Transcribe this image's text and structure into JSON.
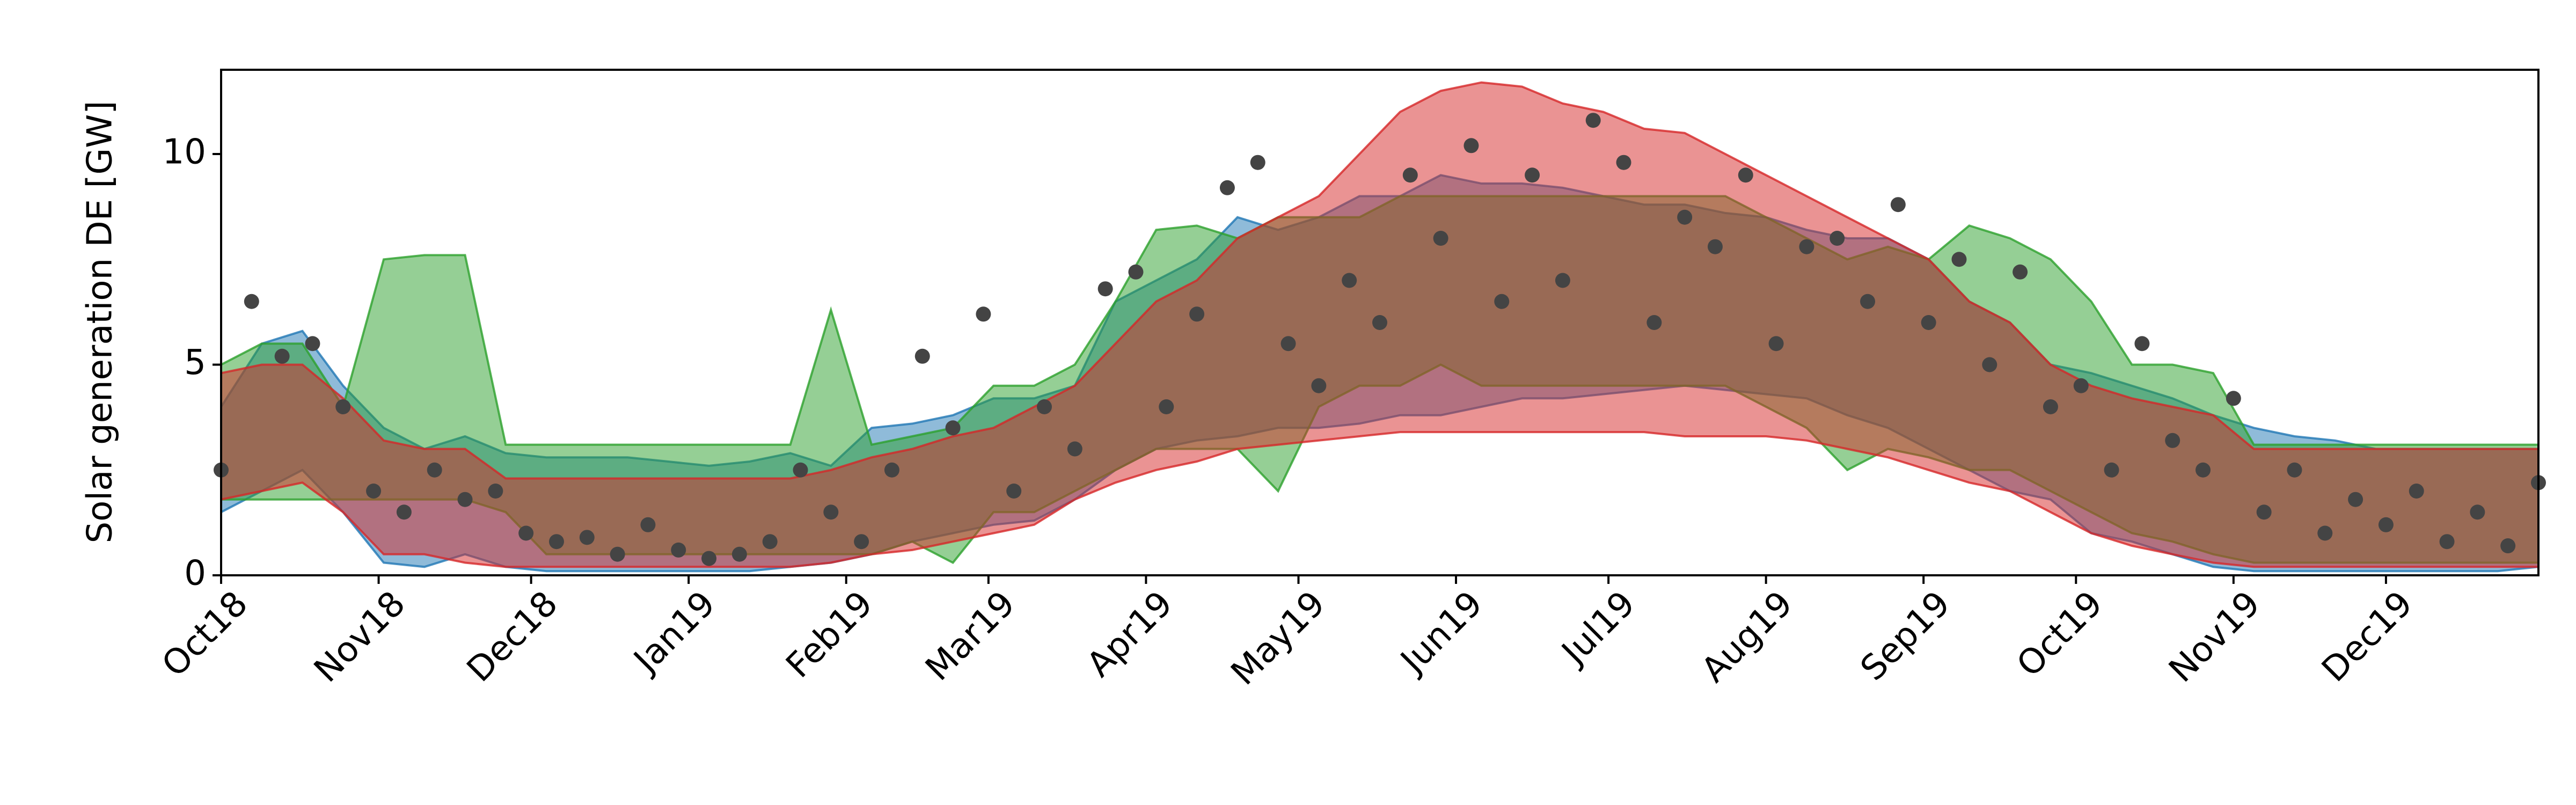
{
  "chart_data": {
    "type": "band-scatter",
    "ylabel": "Solar generation DE [GW]",
    "xlim": [
      0,
      456
    ],
    "ylim": [
      0,
      12
    ],
    "yticks": [
      0,
      5,
      10
    ],
    "xticks": [
      {
        "value": 0,
        "label": "Oct18"
      },
      {
        "value": 31,
        "label": "Nov18"
      },
      {
        "value": 61,
        "label": "Dec18"
      },
      {
        "value": 92,
        "label": "Jan19"
      },
      {
        "value": 123,
        "label": "Feb19"
      },
      {
        "value": 151,
        "label": "Mar19"
      },
      {
        "value": 182,
        "label": "Apr19"
      },
      {
        "value": 212,
        "label": "May19"
      },
      {
        "value": 243,
        "label": "Jun19"
      },
      {
        "value": 273,
        "label": "Jul19"
      },
      {
        "value": 304,
        "label": "Aug19"
      },
      {
        "value": 335,
        "label": "Sep19"
      },
      {
        "value": 365,
        "label": "Oct19"
      },
      {
        "value": 396,
        "label": "Nov19"
      },
      {
        "value": 426,
        "label": "Dec19"
      }
    ],
    "series": [
      {
        "color": "#1f77b4",
        "x": [
          0,
          8,
          16,
          24,
          32,
          40,
          48,
          56,
          64,
          72,
          80,
          88,
          96,
          104,
          112,
          120,
          128,
          136,
          144,
          152,
          160,
          168,
          176,
          184,
          192,
          200,
          208,
          216,
          224,
          232,
          240,
          248,
          256,
          264,
          272,
          280,
          288,
          296,
          304,
          312,
          320,
          328,
          336,
          344,
          352,
          360,
          368,
          376,
          384,
          392,
          400,
          408,
          416,
          424,
          432,
          440,
          448,
          456
        ],
        "lower": [
          1.5,
          2.0,
          2.5,
          1.5,
          0.3,
          0.2,
          0.5,
          0.2,
          0.1,
          0.1,
          0.1,
          0.1,
          0.1,
          0.1,
          0.2,
          0.3,
          0.5,
          0.8,
          1.0,
          1.2,
          1.3,
          1.8,
          2.5,
          3.0,
          3.2,
          3.3,
          3.5,
          3.5,
          3.6,
          3.8,
          3.8,
          4.0,
          4.2,
          4.2,
          4.3,
          4.4,
          4.5,
          4.4,
          4.3,
          4.2,
          3.8,
          3.5,
          3.0,
          2.5,
          2.0,
          1.8,
          1.0,
          0.8,
          0.5,
          0.2,
          0.1,
          0.1,
          0.1,
          0.1,
          0.1,
          0.1,
          0.1,
          0.2
        ],
        "upper": [
          4.0,
          5.5,
          5.8,
          4.5,
          3.5,
          3.0,
          3.3,
          2.9,
          2.8,
          2.8,
          2.8,
          2.7,
          2.6,
          2.7,
          2.9,
          2.6,
          3.5,
          3.6,
          3.8,
          4.2,
          4.2,
          4.5,
          6.5,
          7.0,
          7.5,
          8.5,
          8.2,
          8.5,
          9.0,
          9.0,
          9.5,
          9.3,
          9.3,
          9.2,
          9.0,
          8.8,
          8.8,
          8.6,
          8.5,
          8.2,
          8.0,
          8.0,
          7.5,
          6.5,
          6.0,
          5.0,
          4.8,
          4.5,
          4.2,
          3.8,
          3.5,
          3.3,
          3.2,
          3.0,
          3.0,
          3.0,
          3.0,
          3.0
        ]
      },
      {
        "color": "#2ca02c",
        "x": [
          0,
          8,
          16,
          24,
          32,
          40,
          48,
          56,
          64,
          72,
          80,
          88,
          96,
          104,
          112,
          120,
          128,
          136,
          144,
          152,
          160,
          168,
          176,
          184,
          192,
          200,
          208,
          216,
          224,
          232,
          240,
          248,
          256,
          264,
          272,
          280,
          288,
          296,
          304,
          312,
          320,
          328,
          336,
          344,
          352,
          360,
          368,
          376,
          384,
          392,
          400,
          408,
          416,
          424,
          432,
          440,
          448,
          456
        ],
        "lower": [
          1.8,
          1.8,
          1.8,
          1.8,
          1.8,
          1.8,
          1.8,
          1.5,
          0.5,
          0.5,
          0.5,
          0.5,
          0.5,
          0.5,
          0.5,
          0.5,
          0.5,
          0.8,
          0.3,
          1.5,
          1.5,
          2.0,
          2.5,
          3.0,
          3.0,
          3.0,
          2.0,
          4.0,
          4.5,
          4.5,
          5.0,
          4.5,
          4.5,
          4.5,
          4.5,
          4.5,
          4.5,
          4.5,
          4.0,
          3.5,
          2.5,
          3.0,
          2.8,
          2.5,
          2.5,
          2.0,
          1.5,
          1.0,
          0.8,
          0.5,
          0.3,
          0.3,
          0.3,
          0.3,
          0.3,
          0.3,
          0.3,
          0.3
        ],
        "upper": [
          5.0,
          5.5,
          5.5,
          4.0,
          7.5,
          7.6,
          7.6,
          3.1,
          3.1,
          3.1,
          3.1,
          3.1,
          3.1,
          3.1,
          3.1,
          6.3,
          3.1,
          3.3,
          3.5,
          4.5,
          4.5,
          5.0,
          6.5,
          8.2,
          8.3,
          8.0,
          8.5,
          8.5,
          8.5,
          9.0,
          9.0,
          9.0,
          9.0,
          9.0,
          9.0,
          9.0,
          9.0,
          9.0,
          8.5,
          8.0,
          7.5,
          7.8,
          7.5,
          8.3,
          8.0,
          7.5,
          6.5,
          5.0,
          5.0,
          4.8,
          3.1,
          3.1,
          3.1,
          3.1,
          3.1,
          3.1,
          3.1,
          3.1
        ]
      },
      {
        "color": "#d62728",
        "x": [
          0,
          8,
          16,
          24,
          32,
          40,
          48,
          56,
          64,
          72,
          80,
          88,
          96,
          104,
          112,
          120,
          128,
          136,
          144,
          152,
          160,
          168,
          176,
          184,
          192,
          200,
          208,
          216,
          224,
          232,
          240,
          248,
          256,
          264,
          272,
          280,
          288,
          296,
          304,
          312,
          320,
          328,
          336,
          344,
          352,
          360,
          368,
          376,
          384,
          392,
          400,
          408,
          416,
          424,
          432,
          440,
          448,
          456
        ],
        "lower": [
          1.8,
          2.0,
          2.2,
          1.5,
          0.5,
          0.5,
          0.3,
          0.2,
          0.2,
          0.2,
          0.2,
          0.2,
          0.2,
          0.2,
          0.2,
          0.3,
          0.5,
          0.6,
          0.8,
          1.0,
          1.2,
          1.8,
          2.2,
          2.5,
          2.7,
          3.0,
          3.1,
          3.2,
          3.3,
          3.4,
          3.4,
          3.4,
          3.4,
          3.4,
          3.4,
          3.4,
          3.3,
          3.3,
          3.3,
          3.2,
          3.0,
          2.8,
          2.5,
          2.2,
          2.0,
          1.5,
          1.0,
          0.7,
          0.5,
          0.3,
          0.2,
          0.2,
          0.2,
          0.2,
          0.2,
          0.2,
          0.2,
          0.2
        ],
        "upper": [
          4.8,
          5.0,
          5.0,
          4.2,
          3.2,
          3.0,
          3.0,
          2.3,
          2.3,
          2.3,
          2.3,
          2.3,
          2.3,
          2.3,
          2.3,
          2.5,
          2.8,
          3.0,
          3.3,
          3.5,
          4.0,
          4.5,
          5.5,
          6.5,
          7.0,
          8.0,
          8.5,
          9.0,
          10.0,
          11.0,
          11.5,
          11.7,
          11.6,
          11.2,
          11.0,
          10.6,
          10.5,
          10.0,
          9.5,
          9.0,
          8.5,
          8.0,
          7.5,
          6.5,
          6.0,
          5.0,
          4.5,
          4.2,
          4.0,
          3.8,
          3.0,
          3.0,
          3.0,
          3.0,
          3.0,
          3.0,
          3.0,
          3.0
        ]
      }
    ],
    "points": {
      "color": "#444444",
      "x": [
        0,
        6,
        12,
        18,
        24,
        30,
        36,
        42,
        48,
        54,
        60,
        66,
        72,
        78,
        84,
        90,
        96,
        102,
        108,
        114,
        120,
        126,
        132,
        138,
        144,
        150,
        156,
        162,
        168,
        174,
        180,
        186,
        192,
        198,
        204,
        210,
        216,
        222,
        228,
        234,
        240,
        246,
        252,
        258,
        264,
        270,
        276,
        282,
        288,
        294,
        300,
        306,
        312,
        318,
        324,
        330,
        336,
        342,
        348,
        354,
        360,
        366,
        372,
        378,
        384,
        390,
        396,
        402,
        408,
        414,
        420,
        426,
        432,
        438,
        444,
        450,
        456
      ],
      "values": [
        2.5,
        6.5,
        5.2,
        5.5,
        4.0,
        2.0,
        1.5,
        2.5,
        1.8,
        2.0,
        1.0,
        0.8,
        0.9,
        0.5,
        1.2,
        0.6,
        0.4,
        0.5,
        0.8,
        2.5,
        1.5,
        0.8,
        2.5,
        5.2,
        3.5,
        6.2,
        2.0,
        4.0,
        3.0,
        6.8,
        7.2,
        4.0,
        6.2,
        9.2,
        9.8,
        5.5,
        4.5,
        7.0,
        6.0,
        9.5,
        8.0,
        10.2,
        6.5,
        9.5,
        7.0,
        10.8,
        9.8,
        6.0,
        8.5,
        7.8,
        9.5,
        5.5,
        7.8,
        8.0,
        6.5,
        8.8,
        6.0,
        7.5,
        5.0,
        7.2,
        4.0,
        4.5,
        2.5,
        5.5,
        3.2,
        2.5,
        4.2,
        1.5,
        2.5,
        1.0,
        1.8,
        1.2,
        2.0,
        0.8,
        1.5,
        0.7,
        2.2
      ]
    }
  }
}
